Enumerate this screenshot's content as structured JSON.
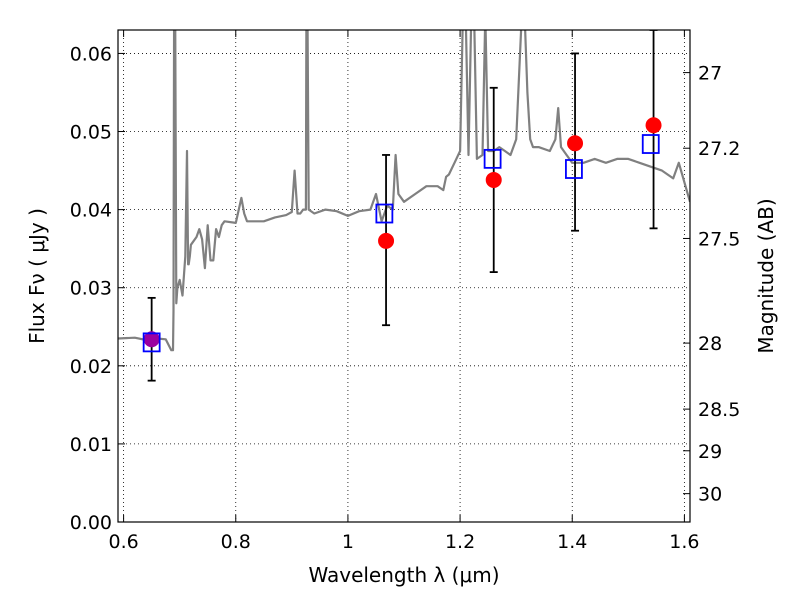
{
  "chart_data": {
    "type": "scatter",
    "xlabel": "Wavelength  λ (μm)",
    "ylabel": "Flux  Fν  ( μJy )",
    "y2label": "Magnitude (AB)",
    "xlim": [
      0.59,
      1.61
    ],
    "ylim": [
      0.0,
      0.063
    ],
    "x_ticks": [
      {
        "value": 0.6,
        "label": "0.6"
      },
      {
        "value": 0.8,
        "label": "0.8"
      },
      {
        "value": 1.0,
        "label": "1"
      },
      {
        "value": 1.2,
        "label": "1.2"
      },
      {
        "value": 1.4,
        "label": "1.4"
      },
      {
        "value": 1.6,
        "label": "1.6"
      }
    ],
    "y_ticks": [
      {
        "value": 0.0,
        "label": "0.00"
      },
      {
        "value": 0.01,
        "label": "0.01"
      },
      {
        "value": 0.02,
        "label": "0.02"
      },
      {
        "value": 0.03,
        "label": "0.03"
      },
      {
        "value": 0.04,
        "label": "0.04"
      },
      {
        "value": 0.05,
        "label": "0.05"
      },
      {
        "value": 0.06,
        "label": "0.06"
      }
    ],
    "y2_ticks": [
      {
        "mag": 27.0,
        "label": "27"
      },
      {
        "mag": 27.2,
        "label": "27.2"
      },
      {
        "mag": 27.5,
        "label": "27.5"
      },
      {
        "mag": 28.0,
        "label": "28"
      },
      {
        "mag": 28.5,
        "label": "28.5"
      },
      {
        "mag": 29.0,
        "label": "29"
      },
      {
        "mag": 30.0,
        "label": "30"
      }
    ],
    "grid": true,
    "colors": {
      "template": "#808080",
      "observed": "#ff0000",
      "model": "#0000ff",
      "errorbar": "#000000",
      "first_point_overlap": "#9b00a0"
    },
    "series": [
      {
        "kind": "template_spectrum",
        "x": [
          0.59,
          0.62,
          0.64,
          0.66,
          0.675,
          0.685,
          0.688,
          0.689,
          0.69,
          0.692,
          0.694,
          0.696,
          0.7,
          0.705,
          0.71,
          0.713,
          0.715,
          0.716,
          0.718,
          0.72,
          0.73,
          0.735,
          0.74,
          0.745,
          0.75,
          0.755,
          0.76,
          0.765,
          0.77,
          0.775,
          0.78,
          0.8,
          0.81,
          0.815,
          0.82,
          0.83,
          0.85,
          0.87,
          0.89,
          0.9,
          0.905,
          0.91,
          0.915,
          0.92,
          0.925,
          0.926,
          0.928,
          0.93,
          0.94,
          0.96,
          0.98,
          1.0,
          1.02,
          1.04,
          1.05,
          1.06,
          1.07,
          1.08,
          1.085,
          1.09,
          1.1,
          1.12,
          1.14,
          1.16,
          1.17,
          1.175,
          1.18,
          1.19,
          1.2,
          1.205,
          1.21,
          1.215,
          1.22,
          1.225,
          1.23,
          1.24,
          1.245,
          1.25,
          1.26,
          1.27,
          1.28,
          1.29,
          1.3,
          1.31,
          1.315,
          1.32,
          1.325,
          1.33,
          1.34,
          1.36,
          1.37,
          1.375,
          1.38,
          1.39,
          1.4,
          1.42,
          1.44,
          1.46,
          1.48,
          1.5,
          1.52,
          1.54,
          1.56,
          1.57,
          1.58,
          1.59,
          1.6,
          1.61
        ],
        "y": [
          0.0235,
          0.0236,
          0.0233,
          0.0235,
          0.0234,
          0.022,
          0.022,
          0.027,
          0.065,
          0.065,
          0.028,
          0.03,
          0.031,
          0.029,
          0.034,
          0.0475,
          0.033,
          0.033,
          0.034,
          0.0355,
          0.0365,
          0.0375,
          0.0362,
          0.0325,
          0.038,
          0.0335,
          0.0335,
          0.0375,
          0.0365,
          0.038,
          0.0385,
          0.0383,
          0.0415,
          0.0395,
          0.0385,
          0.0385,
          0.0385,
          0.039,
          0.0393,
          0.0397,
          0.045,
          0.0395,
          0.0395,
          0.04,
          0.04,
          0.065,
          0.065,
          0.04,
          0.0395,
          0.04,
          0.0398,
          0.0392,
          0.0398,
          0.04,
          0.042,
          0.0385,
          0.0405,
          0.04,
          0.047,
          0.042,
          0.041,
          0.042,
          0.043,
          0.043,
          0.0425,
          0.0442,
          0.0445,
          0.046,
          0.0475,
          0.065,
          0.065,
          0.047,
          0.065,
          0.065,
          0.0465,
          0.047,
          0.065,
          0.0475,
          0.0475,
          0.048,
          0.0475,
          0.047,
          0.049,
          0.065,
          0.065,
          0.055,
          0.049,
          0.048,
          0.048,
          0.0475,
          0.049,
          0.053,
          0.048,
          0.047,
          0.046,
          0.046,
          0.0465,
          0.046,
          0.0465,
          0.0465,
          0.046,
          0.0455,
          0.045,
          0.0445,
          0.044,
          0.046,
          0.0435,
          0.041
        ]
      },
      {
        "kind": "observed_points_with_errors",
        "x": [
          0.65,
          1.068,
          1.26,
          1.405,
          1.545
        ],
        "y": [
          0.0234,
          0.036,
          0.0438,
          0.0485,
          0.0508
        ],
        "yerr_low": [
          0.0181,
          0.0252,
          0.032,
          0.0373,
          0.0376
        ],
        "yerr_high": [
          0.0287,
          0.047,
          0.0556,
          0.06,
          0.063
        ]
      },
      {
        "kind": "model_points",
        "x": [
          0.65,
          1.065,
          1.258,
          1.403,
          1.54
        ],
        "y": [
          0.023,
          0.0395,
          0.0465,
          0.0452,
          0.0484
        ]
      }
    ]
  }
}
